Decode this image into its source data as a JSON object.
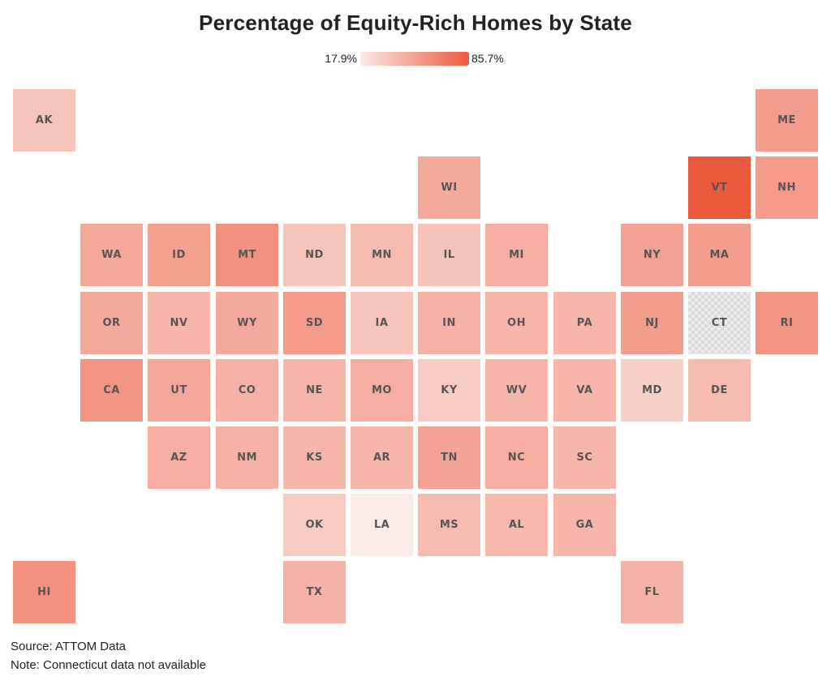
{
  "title": "Percentage of Equity-Rich Homes by State",
  "legend": {
    "min_label": "17.9%",
    "max_label": "85.7%",
    "min_value": 17.9,
    "max_value": 85.7,
    "color_low": "#fbeae6",
    "color_high": "#ec5a3d"
  },
  "states": [
    {
      "abbr": "AK",
      "col": 0,
      "row": 0,
      "value": 32
    },
    {
      "abbr": "ME",
      "col": 11,
      "row": 0,
      "value": 50
    },
    {
      "abbr": "WI",
      "col": 6,
      "row": 1,
      "value": 44
    },
    {
      "abbr": "VT",
      "col": 10,
      "row": 1,
      "value": 85.7
    },
    {
      "abbr": "NH",
      "col": 11,
      "row": 1,
      "value": 52
    },
    {
      "abbr": "WA",
      "col": 1,
      "row": 2,
      "value": 45
    },
    {
      "abbr": "ID",
      "col": 2,
      "row": 2,
      "value": 49
    },
    {
      "abbr": "MT",
      "col": 3,
      "row": 2,
      "value": 56
    },
    {
      "abbr": "ND",
      "col": 4,
      "row": 2,
      "value": 32
    },
    {
      "abbr": "MN",
      "col": 5,
      "row": 2,
      "value": 36
    },
    {
      "abbr": "IL",
      "col": 6,
      "row": 2,
      "value": 33
    },
    {
      "abbr": "MI",
      "col": 7,
      "row": 2,
      "value": 42
    },
    {
      "abbr": "NY",
      "col": 9,
      "row": 2,
      "value": 48
    },
    {
      "abbr": "MA",
      "col": 10,
      "row": 2,
      "value": 50
    },
    {
      "abbr": "OR",
      "col": 1,
      "row": 3,
      "value": 44
    },
    {
      "abbr": "NV",
      "col": 2,
      "row": 3,
      "value": 38
    },
    {
      "abbr": "WY",
      "col": 3,
      "row": 3,
      "value": 44
    },
    {
      "abbr": "SD",
      "col": 4,
      "row": 3,
      "value": 52
    },
    {
      "abbr": "IA",
      "col": 5,
      "row": 3,
      "value": 32
    },
    {
      "abbr": "IN",
      "col": 6,
      "row": 3,
      "value": 40
    },
    {
      "abbr": "OH",
      "col": 7,
      "row": 3,
      "value": 39
    },
    {
      "abbr": "PA",
      "col": 8,
      "row": 3,
      "value": 38
    },
    {
      "abbr": "NJ",
      "col": 9,
      "row": 3,
      "value": 50
    },
    {
      "abbr": "CT",
      "col": 10,
      "row": 3,
      "value": null
    },
    {
      "abbr": "RI",
      "col": 11,
      "row": 3,
      "value": 54
    },
    {
      "abbr": "CA",
      "col": 1,
      "row": 4,
      "value": 54
    },
    {
      "abbr": "UT",
      "col": 2,
      "row": 4,
      "value": 45
    },
    {
      "abbr": "CO",
      "col": 3,
      "row": 4,
      "value": 40
    },
    {
      "abbr": "NE",
      "col": 4,
      "row": 4,
      "value": 38
    },
    {
      "abbr": "MO",
      "col": 5,
      "row": 4,
      "value": 42
    },
    {
      "abbr": "KY",
      "col": 6,
      "row": 4,
      "value": 29
    },
    {
      "abbr": "WV",
      "col": 7,
      "row": 4,
      "value": 38
    },
    {
      "abbr": "VA",
      "col": 8,
      "row": 4,
      "value": 38
    },
    {
      "abbr": "MD",
      "col": 9,
      "row": 4,
      "value": 27
    },
    {
      "abbr": "DE",
      "col": 10,
      "row": 4,
      "value": 36
    },
    {
      "abbr": "AZ",
      "col": 2,
      "row": 5,
      "value": 42
    },
    {
      "abbr": "NM",
      "col": 3,
      "row": 5,
      "value": 40
    },
    {
      "abbr": "KS",
      "col": 4,
      "row": 5,
      "value": 38
    },
    {
      "abbr": "AR",
      "col": 5,
      "row": 5,
      "value": 38
    },
    {
      "abbr": "TN",
      "col": 6,
      "row": 5,
      "value": 47
    },
    {
      "abbr": "NC",
      "col": 7,
      "row": 5,
      "value": 42
    },
    {
      "abbr": "SC",
      "col": 8,
      "row": 5,
      "value": 38
    },
    {
      "abbr": "OK",
      "col": 4,
      "row": 6,
      "value": 29
    },
    {
      "abbr": "LA",
      "col": 5,
      "row": 6,
      "value": 17.9
    },
    {
      "abbr": "MS",
      "col": 6,
      "row": 6,
      "value": 36
    },
    {
      "abbr": "AL",
      "col": 7,
      "row": 6,
      "value": 37
    },
    {
      "abbr": "GA",
      "col": 8,
      "row": 6,
      "value": 38
    },
    {
      "abbr": "HI",
      "col": 0,
      "row": 7,
      "value": 56
    },
    {
      "abbr": "TX",
      "col": 4,
      "row": 7,
      "value": 40
    },
    {
      "abbr": "FL",
      "col": 9,
      "row": 7,
      "value": 40
    }
  ],
  "na_color": "#ececec",
  "footer": {
    "source": "Source: ATTOM Data",
    "note": "Note: Connecticut data not available"
  }
}
